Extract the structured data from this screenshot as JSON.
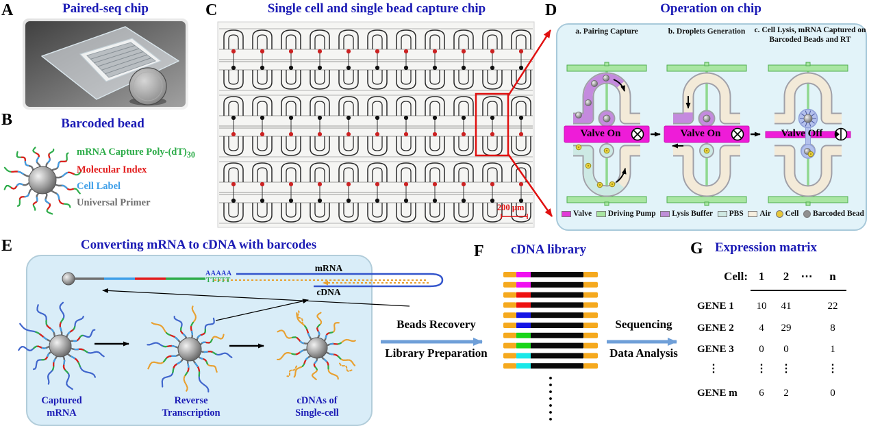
{
  "panelA": {
    "letter": "A",
    "title": "Paired-seq chip"
  },
  "panelB": {
    "letter": "B",
    "title": "Barcoded bead",
    "items": [
      {
        "label": "mRNA Capture Poly-(dT)",
        "sub": "30",
        "color": "#2eac4a"
      },
      {
        "label": "Molecular Index",
        "color": "#e21d1d"
      },
      {
        "label": "Cell Label",
        "color": "#3f9fe8"
      },
      {
        "label": "Universal Primer",
        "color": "#6e6e6e"
      }
    ]
  },
  "panelC": {
    "letter": "C",
    "title": "Single cell and single bead capture chip",
    "scale_bar": "200 μm"
  },
  "panelD": {
    "letter": "D",
    "title": "Operation on chip",
    "steps": [
      {
        "title": "a. Pairing Capture",
        "valve_label": "Valve On"
      },
      {
        "title": "b. Droplets Generation",
        "valve_label": "Valve On"
      },
      {
        "title": "c. Cell Lysis, mRNA Captured on Barcoded Beads and RT",
        "valve_label": "Valve Off"
      }
    ],
    "legend": [
      {
        "label": "Valve",
        "color": "#e23ad8",
        "shape": "rect"
      },
      {
        "label": "Driving Pump",
        "color": "#a9e6a2",
        "shape": "rect"
      },
      {
        "label": "Lysis Buffer",
        "color": "#bf8fd8",
        "shape": "rect"
      },
      {
        "label": "PBS",
        "color": "#cfe9e2",
        "shape": "rect"
      },
      {
        "label": "Air",
        "color": "#f6efdf",
        "shape": "rect"
      },
      {
        "label": "Cell",
        "color": "#e8c83a",
        "shape": "dot"
      },
      {
        "label": "Barcoded Bead",
        "color": "#909090",
        "shape": "dot"
      }
    ]
  },
  "panelE": {
    "letter": "E",
    "title": "Converting mRNA to cDNA with barcodes",
    "seq_top": "AAAAA",
    "seq_bottom": "TTTTT",
    "mrna_label": "mRNA",
    "cdna_label": "cDNA",
    "steps": [
      "Captured\nmRNA",
      "Reverse\nTranscription",
      "cDNAs of\nSingle-cell"
    ]
  },
  "panelF": {
    "letter": "F",
    "title": "cDNA library",
    "barcode_colors": [
      "#f010f0",
      "#f010f0",
      "#ee1111",
      "#ee1111",
      "#1515e5",
      "#1515e5",
      "#19d519",
      "#19d519",
      "#1ae8e8",
      "#1ae8e8"
    ],
    "adapter_color": "#f5a91e",
    "insert_color": "#0a0a0a"
  },
  "panelG": {
    "letter": "G",
    "title": "Expression matrix",
    "matrix": {
      "row_header": "Cell:",
      "columns": [
        "1",
        "2",
        "⋯",
        "n"
      ],
      "rows": [
        {
          "gene": "GENE 1",
          "v1": "10",
          "v2": "41",
          "vn": "22"
        },
        {
          "gene": "GENE 2",
          "v1": "4",
          "v2": "29",
          "vn": "8"
        },
        {
          "gene": "GENE 3",
          "v1": "0",
          "v2": "0",
          "vn": "1"
        },
        {
          "gene": "⋮",
          "v1": "⋮",
          "v2": "⋮",
          "vn": "⋮"
        },
        {
          "gene": "GENE m",
          "v1": "6",
          "v2": "2",
          "vn": "0"
        }
      ]
    }
  },
  "workflow": {
    "step1_top": "Beads Recovery",
    "step1_bottom": "Library Preparation",
    "step2_top": "Sequencing",
    "step2_bottom": "Data Analysis"
  }
}
